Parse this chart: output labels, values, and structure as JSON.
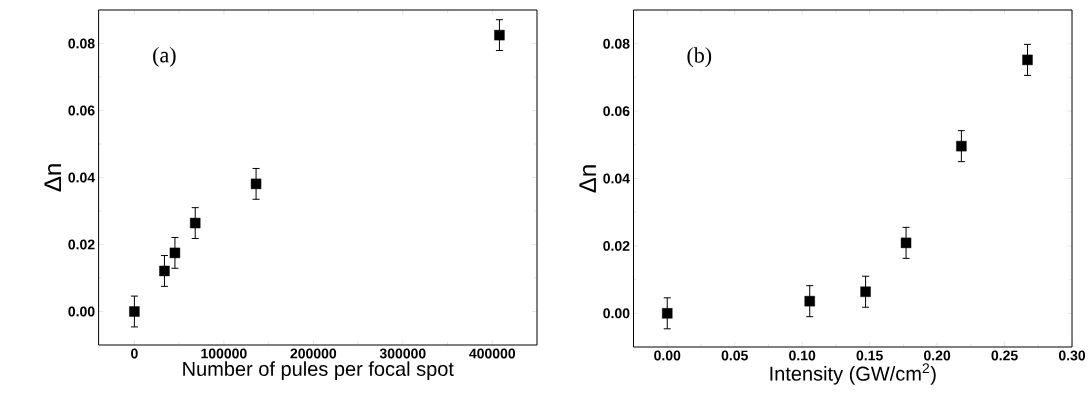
{
  "chart_data": [
    {
      "type": "scatter",
      "xlabel": "Number of pules per focal spot",
      "ylabel": "Δn",
      "annotations": [
        "(a)"
      ],
      "marker": "square",
      "x": [
        0,
        33600,
        45300,
        68000,
        136000,
        408000
      ],
      "series": [
        {
          "color": "#000000",
          "values": [
            0,
            0.0121,
            0.0175,
            0.0264,
            0.0381,
            0.0825
          ],
          "errors": [
            0.0046,
            0.0046,
            0.0046,
            0.0046,
            0.0046,
            0.0046
          ]
        }
      ],
      "xlim": [
        -40000,
        450000
      ],
      "xticks": [
        0,
        100000,
        200000,
        300000,
        400000
      ],
      "ylim": [
        -0.01,
        0.09
      ],
      "yticks": [
        {
          "value": 0,
          "label": "0.00"
        },
        {
          "value": 0.02,
          "label": "0.02"
        },
        {
          "value": 0.04,
          "label": "0.04"
        },
        {
          "value": 0.06,
          "label": "0.06"
        },
        {
          "value": 0.08,
          "label": "0.08"
        }
      ]
    },
    {
      "type": "scatter",
      "xlabel": "Intensity (GW/cm$^{2}$)",
      "ylabel": "Δn",
      "annotations": [
        "(b)"
      ],
      "marker": "square",
      "x": [
        0,
        0.1056,
        0.147,
        0.177,
        0.218,
        0.267
      ],
      "series": [
        {
          "color": "#000000",
          "values": [
            0,
            0.0036,
            0.0064,
            0.0209,
            0.0496,
            0.0752
          ],
          "errors": [
            0.0046,
            0.0046,
            0.0046,
            0.0046,
            0.0046,
            0.0046
          ]
        }
      ],
      "xlim": [
        -0.025,
        0.3
      ],
      "xticks": [
        {
          "value": 0,
          "label": "0.00"
        },
        {
          "value": 0.05,
          "label": "0.05"
        },
        {
          "value": 0.1,
          "label": "0.10"
        },
        {
          "value": 0.15,
          "label": "0.15"
        },
        {
          "value": 0.2,
          "label": "0.20"
        },
        {
          "value": 0.25,
          "label": "0.25"
        },
        {
          "value": 0.3,
          "label": "0.30"
        }
      ],
      "ylim": [
        -0.01,
        0.09
      ],
      "yticks": [
        {
          "value": 0,
          "label": "0.00"
        },
        {
          "value": 0.02,
          "label": "0.02"
        },
        {
          "value": 0.04,
          "label": "0.04"
        },
        {
          "value": 0.06,
          "label": "0.06"
        },
        {
          "value": 0.08,
          "label": "0.08"
        }
      ]
    }
  ]
}
